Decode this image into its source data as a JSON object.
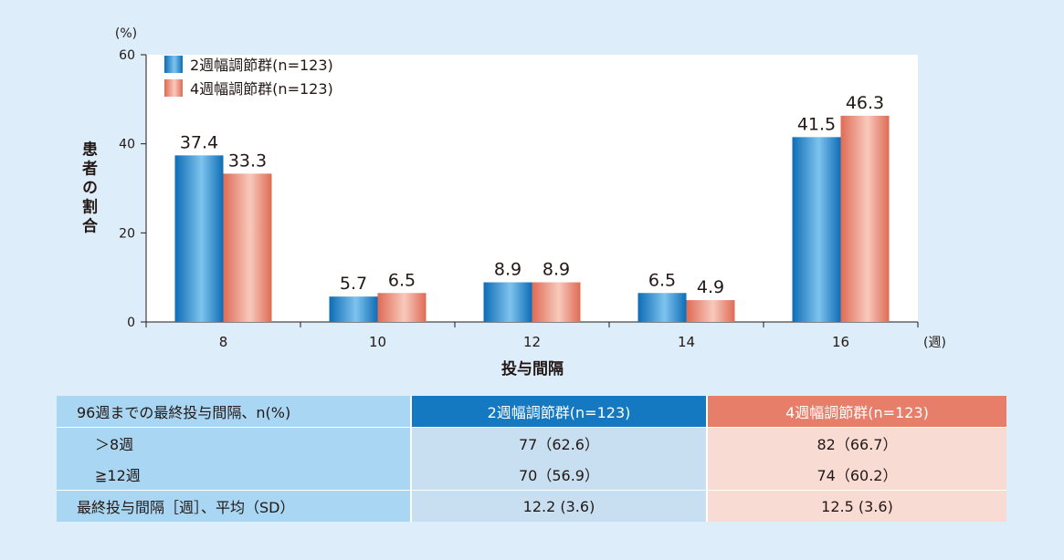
{
  "chart_data": {
    "type": "bar",
    "title": "",
    "unit_label": "(%)",
    "ylabel": "患者の割合",
    "xlabel": "投与間隔",
    "x_unit_label": "(週)",
    "ylim": [
      0,
      60
    ],
    "yticks": [
      0,
      20,
      40,
      60
    ],
    "categories": [
      "8",
      "10",
      "12",
      "14",
      "16"
    ],
    "legend_position": "top-left",
    "series": [
      {
        "name": "2週幅調節群(n=123)",
        "color": "#1a7cc4",
        "values": [
          37.4,
          5.7,
          8.9,
          6.5,
          41.5
        ]
      },
      {
        "name": "4週幅調節群(n=123)",
        "color": "#e57a66",
        "values": [
          33.3,
          6.5,
          8.9,
          4.9,
          46.3
        ]
      }
    ]
  },
  "table": {
    "header": [
      "96週までの最終投与間隔、n(%)",
      "2週幅調節群(n=123)",
      "4週幅調節群(n=123)"
    ],
    "rows": [
      {
        "label": "＞8週",
        "g2": "77（62.6）",
        "g4": "82（66.7）"
      },
      {
        "label": "≧12週",
        "g2": "70（56.9）",
        "g4": "74（60.2）"
      }
    ],
    "summary_row": {
      "label": "最終投与間隔［週］、平均（SD）",
      "g2": "12.2 (3.6)",
      "g4": "12.5 (3.6)"
    }
  }
}
